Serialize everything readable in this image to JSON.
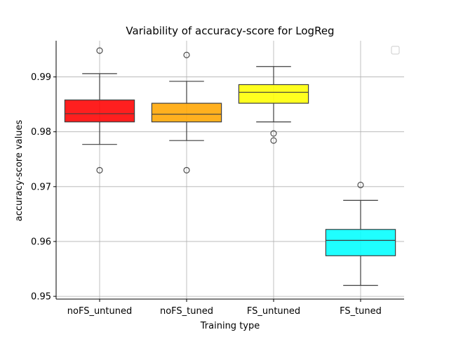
{
  "chart_data": {
    "type": "box",
    "title": "Variability of accuracy-score  for LogReg",
    "xlabel": "Training type",
    "ylabel": "accuracy-score values",
    "ylim": [
      0.9495,
      0.9966
    ],
    "yticks": [
      0.95,
      0.96,
      0.97,
      0.98,
      0.99
    ],
    "ytick_labels": [
      "0.95",
      "0.96",
      "0.97",
      "0.98",
      "0.99"
    ],
    "grid": true,
    "legend": "top-right, empty",
    "categories": [
      "noFS_untuned",
      "noFS_tuned",
      "FS_untuned",
      "FS_tuned"
    ],
    "boxes": [
      {
        "category": "noFS_untuned",
        "color": "#ff0000",
        "whisker_low": 0.9777,
        "q1": 0.9818,
        "median": 0.9833,
        "q3": 0.9858,
        "whisker_high": 0.9906,
        "outliers": [
          0.9948,
          0.973
        ]
      },
      {
        "category": "noFS_tuned",
        "color": "#ffa500",
        "whisker_low": 0.9784,
        "q1": 0.9818,
        "median": 0.9832,
        "q3": 0.9852,
        "whisker_high": 0.9892,
        "outliers": [
          0.994,
          0.973
        ]
      },
      {
        "category": "FS_untuned",
        "color": "#ffff00",
        "whisker_low": 0.9818,
        "q1": 0.9852,
        "median": 0.9872,
        "q3": 0.9886,
        "whisker_high": 0.9919,
        "outliers": [
          0.9797,
          0.9784
        ]
      },
      {
        "category": "FS_tuned",
        "color": "#00ffff",
        "whisker_low": 0.952,
        "q1": 0.9574,
        "median": 0.9602,
        "q3": 0.9622,
        "whisker_high": 0.9675,
        "outliers": [
          0.9703
        ]
      }
    ]
  }
}
